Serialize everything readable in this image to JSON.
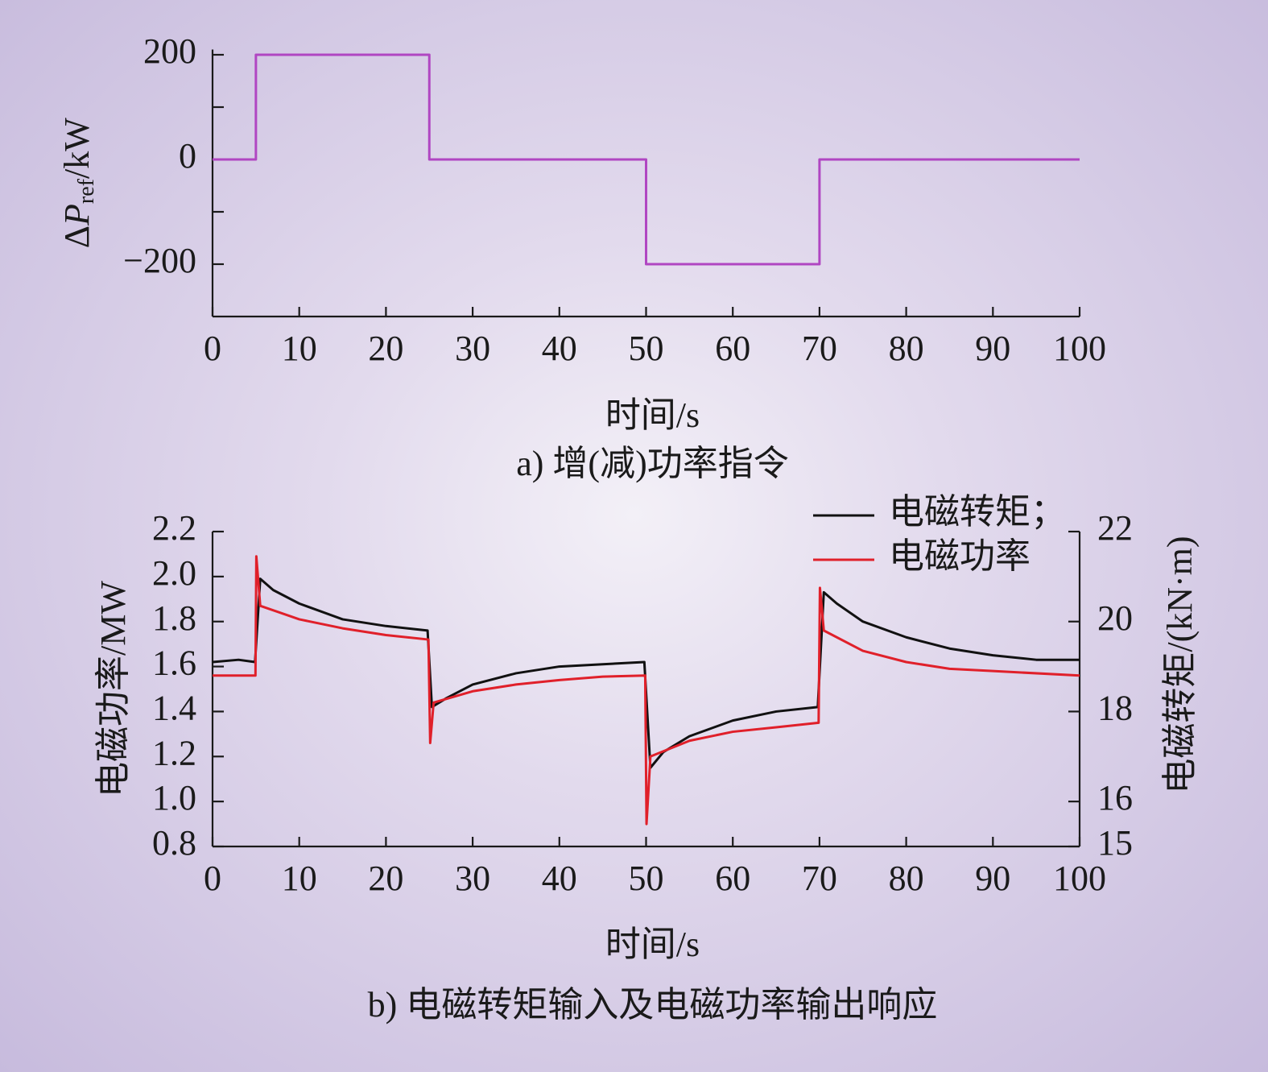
{
  "chart_data": [
    {
      "type": "line",
      "caption": "a) 增(减)功率指令",
      "xlabel": "时间/s",
      "ylabel": {
        "prefix": "Δ",
        "symbol": "P",
        "subscript": "ref",
        "unit": "/kW"
      },
      "xlim": [
        0,
        100
      ],
      "xticks": [
        0,
        10,
        20,
        30,
        40,
        50,
        60,
        70,
        80,
        90,
        100
      ],
      "ylim": [
        -300,
        210
      ],
      "yticks": [
        {
          "value": -200,
          "label": "−200"
        },
        0,
        200
      ],
      "yminorticks": [
        -100,
        100
      ],
      "series": [
        {
          "color": "#b046c2",
          "x": [
            0,
            5,
            5,
            25,
            25,
            50,
            50,
            70,
            70,
            100
          ],
          "values": [
            0,
            0,
            200,
            200,
            0,
            0,
            -200,
            -200,
            0,
            0
          ]
        }
      ]
    },
    {
      "type": "line",
      "caption": "b) 电磁转矩输入及电磁功率输出响应",
      "xlabel": "时间/s",
      "ylabel": "电磁功率/MW",
      "y2label": "电磁转矩/(kN·m)",
      "xlim": [
        0,
        100
      ],
      "xticks": [
        0,
        10,
        20,
        30,
        40,
        50,
        60,
        70,
        80,
        90,
        100
      ],
      "ylim": [
        0.8,
        2.2
      ],
      "yticks": [
        0.8,
        {
          "value": 1.0,
          "label": "1.0"
        },
        1.2,
        1.4,
        1.6,
        1.8,
        {
          "value": 2.0,
          "label": "2.0"
        },
        2.2
      ],
      "y2lim": [
        15,
        22
      ],
      "y2ticks": [
        15,
        16,
        18,
        20,
        22
      ],
      "legend": "top-right",
      "series": [
        {
          "name": "电磁转矩；",
          "color": "#111111",
          "axis": "y2",
          "x": [
            0,
            3,
            4.9,
            5.5,
            7,
            10,
            15,
            20,
            24.8,
            25.3,
            27,
            30,
            35,
            40,
            45,
            49.8,
            50.5,
            52,
            55,
            60,
            65,
            69.8,
            70.5,
            72,
            75,
            80,
            85,
            90,
            95,
            100
          ],
          "values": [
            19.1,
            19.15,
            19.1,
            20.95,
            20.7,
            20.4,
            20.05,
            19.9,
            19.8,
            18.1,
            18.3,
            18.6,
            18.85,
            19.0,
            19.05,
            19.1,
            16.75,
            17.1,
            17.45,
            17.8,
            18.0,
            18.1,
            20.65,
            20.4,
            20.0,
            19.65,
            19.4,
            19.25,
            19.15,
            19.15
          ]
        },
        {
          "name": "电磁功率",
          "color": "#e0202a",
          "x": [
            0,
            4.95,
            5.05,
            5.5,
            10,
            15,
            20,
            24.9,
            25.1,
            25.5,
            30,
            35,
            40,
            45,
            49.9,
            50.05,
            50.5,
            55,
            60,
            65,
            69.9,
            70.05,
            70.5,
            75,
            80,
            85,
            90,
            100
          ],
          "values": [
            1.56,
            1.56,
            2.09,
            1.87,
            1.81,
            1.77,
            1.74,
            1.72,
            1.26,
            1.44,
            1.49,
            1.52,
            1.54,
            1.555,
            1.56,
            0.9,
            1.2,
            1.27,
            1.31,
            1.33,
            1.35,
            1.95,
            1.76,
            1.67,
            1.62,
            1.59,
            1.58,
            1.56
          ]
        }
      ]
    }
  ]
}
